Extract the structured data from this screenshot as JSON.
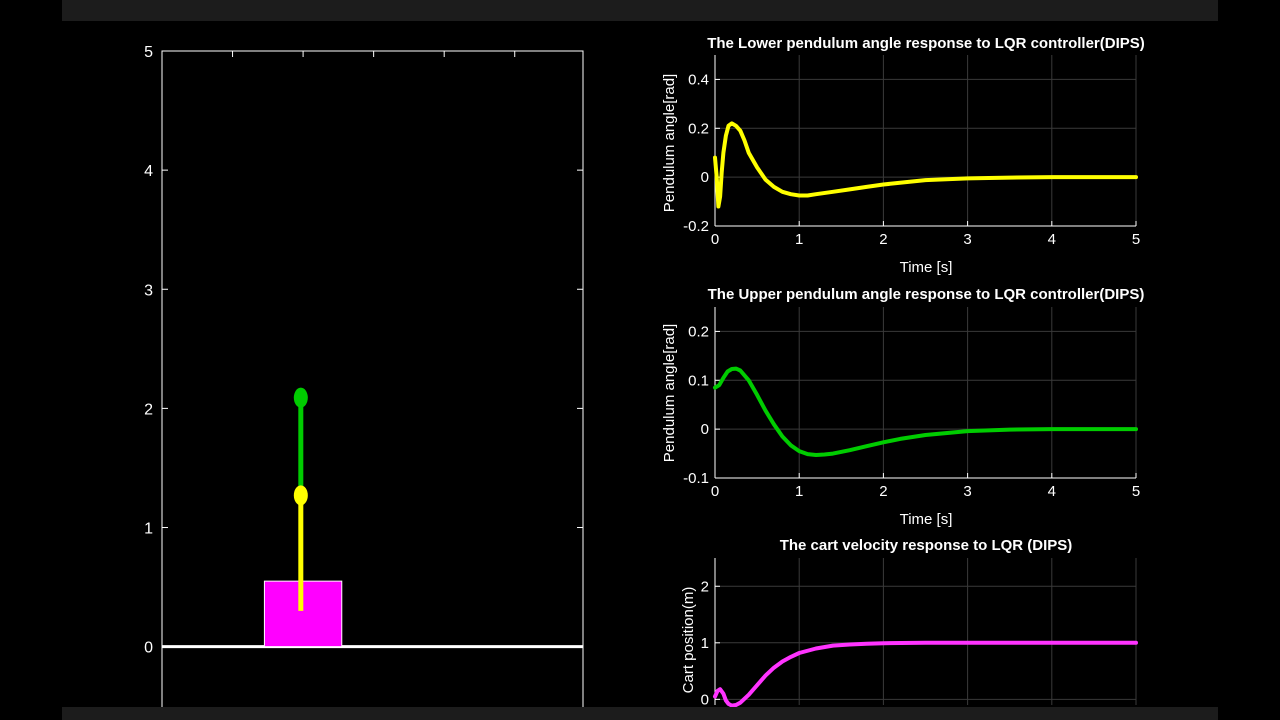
{
  "chart_data": [
    {
      "id": "animation",
      "type": "scatter",
      "title": "",
      "xlabel": "",
      "ylabel": "",
      "xlim": [
        0,
        3.7
      ],
      "ylim": [
        -0.75,
        5
      ],
      "yticks": [
        0,
        1,
        2,
        3,
        4,
        5
      ],
      "ytick_labels": [
        "0",
        "1",
        "2",
        "3",
        "4",
        "5"
      ],
      "ground_y": 0,
      "cart": {
        "x_left": 0.9,
        "x_right": 1.58,
        "y_bottom": 0,
        "y_top": 0.55,
        "color": "#ff00ff"
      },
      "lower_link": {
        "x1": 1.22,
        "y1": 0.3,
        "x2": 1.22,
        "y2": 1.27,
        "color": "#ffff00"
      },
      "upper_link": {
        "x1": 1.22,
        "y1": 1.27,
        "x2": 1.22,
        "y2": 2.09,
        "color": "#00cc00"
      },
      "lower_bob": {
        "x": 1.22,
        "y": 1.27,
        "color": "#ffff00"
      },
      "upper_bob": {
        "x": 1.22,
        "y": 2.09,
        "color": "#00cc00"
      }
    },
    {
      "id": "lower",
      "type": "line",
      "title": "The Lower pendulum angle response to LQR controller(DIPS)",
      "xlabel": "Time [s]",
      "ylabel": "Pendulum angle[rad]",
      "xlim": [
        0,
        5
      ],
      "ylim": [
        -0.2,
        0.5
      ],
      "xticks": [
        0,
        1,
        2,
        3,
        4,
        5
      ],
      "xtick_labels": [
        "0",
        "1",
        "2",
        "3",
        "4",
        "5"
      ],
      "yticks": [
        -0.2,
        0,
        0.2,
        0.4
      ],
      "ytick_labels": [
        "-0.2",
        "0",
        "0.2",
        "0.4"
      ],
      "grid": true,
      "series": [
        {
          "name": "lower angle",
          "color": "#ffff00",
          "x": [
            0,
            0.02,
            0.04,
            0.06,
            0.08,
            0.1,
            0.13,
            0.16,
            0.2,
            0.25,
            0.3,
            0.35,
            0.4,
            0.5,
            0.6,
            0.7,
            0.8,
            0.9,
            1.0,
            1.1,
            1.2,
            1.4,
            1.6,
            1.8,
            2.0,
            2.5,
            3.0,
            3.5,
            4.0,
            4.5,
            5.0
          ],
          "y": [
            0.08,
            0.0,
            -0.12,
            -0.08,
            0.02,
            0.1,
            0.17,
            0.21,
            0.22,
            0.21,
            0.19,
            0.15,
            0.1,
            0.04,
            -0.01,
            -0.04,
            -0.06,
            -0.07,
            -0.075,
            -0.075,
            -0.07,
            -0.06,
            -0.05,
            -0.04,
            -0.03,
            -0.012,
            -0.005,
            -0.002,
            0,
            0,
            0
          ]
        }
      ]
    },
    {
      "id": "upper",
      "type": "line",
      "title": "The Upper pendulum angle response to LQR controller(DIPS)",
      "xlabel": "Time [s]",
      "ylabel": "Pendulum angle[rad]",
      "xlim": [
        0,
        5
      ],
      "ylim": [
        -0.1,
        0.25
      ],
      "xticks": [
        0,
        1,
        2,
        3,
        4,
        5
      ],
      "xtick_labels": [
        "0",
        "1",
        "2",
        "3",
        "4",
        "5"
      ],
      "yticks": [
        -0.1,
        0,
        0.1,
        0.2
      ],
      "ytick_labels": [
        "-0.1",
        "0",
        "0.1",
        "0.2"
      ],
      "grid": true,
      "series": [
        {
          "name": "upper angle",
          "color": "#00cc00",
          "x": [
            0,
            0.05,
            0.1,
            0.15,
            0.2,
            0.25,
            0.3,
            0.4,
            0.5,
            0.6,
            0.7,
            0.8,
            0.9,
            1.0,
            1.1,
            1.2,
            1.3,
            1.4,
            1.6,
            1.8,
            2.0,
            2.2,
            2.5,
            3.0,
            3.5,
            4.0,
            4.5,
            5.0
          ],
          "y": [
            0.085,
            0.09,
            0.105,
            0.118,
            0.123,
            0.124,
            0.12,
            0.1,
            0.07,
            0.038,
            0.01,
            -0.015,
            -0.033,
            -0.045,
            -0.051,
            -0.053,
            -0.052,
            -0.05,
            -0.043,
            -0.035,
            -0.027,
            -0.02,
            -0.012,
            -0.004,
            -0.001,
            0,
            0,
            0
          ]
        }
      ]
    },
    {
      "id": "cart",
      "type": "line",
      "title": "The cart velocity response to LQR (DIPS)",
      "xlabel": "",
      "ylabel": "Cart position(m)",
      "xlim": [
        0,
        5
      ],
      "ylim": [
        -0.1,
        2.5
      ],
      "yticks": [
        0,
        1,
        2
      ],
      "ytick_labels": [
        "0",
        "1",
        "2"
      ],
      "grid": true,
      "series": [
        {
          "name": "cart position",
          "color": "#ff33ff",
          "x": [
            0,
            0.03,
            0.06,
            0.1,
            0.13,
            0.16,
            0.2,
            0.25,
            0.3,
            0.4,
            0.5,
            0.6,
            0.7,
            0.8,
            0.9,
            1.0,
            1.2,
            1.4,
            1.6,
            1.8,
            2.0,
            2.5,
            3.0,
            3.5,
            4.0,
            4.5,
            5.0
          ],
          "y": [
            0.05,
            0.15,
            0.18,
            0.1,
            -0.02,
            -0.08,
            -0.11,
            -0.1,
            -0.06,
            0.08,
            0.25,
            0.42,
            0.56,
            0.67,
            0.75,
            0.82,
            0.9,
            0.95,
            0.97,
            0.985,
            0.993,
            1.0,
            1.0,
            1.0,
            1.0,
            1.0,
            1.0
          ]
        }
      ]
    }
  ]
}
